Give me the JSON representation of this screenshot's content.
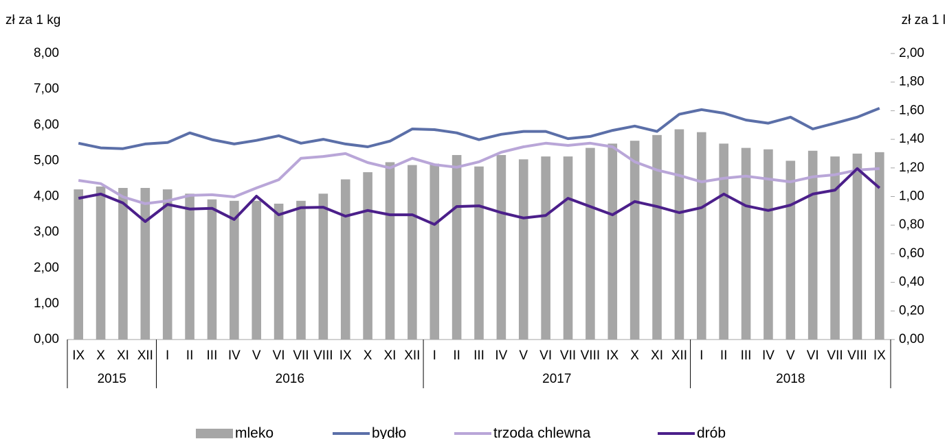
{
  "chart_data": {
    "type": "bar",
    "y_label": "zł za 1 kg",
    "y2_label": "zł za 1 l",
    "categories": [
      "IX",
      "X",
      "XI",
      "XII",
      "I",
      "II",
      "III",
      "IV",
      "V",
      "VI",
      "VII",
      "VIII",
      "IX",
      "X",
      "XI",
      "XII",
      "I",
      "II",
      "III",
      "IV",
      "V",
      "VI",
      "VII",
      "VIII",
      "IX",
      "X",
      "XI",
      "XII",
      "I",
      "II",
      "III",
      "IV",
      "V",
      "VI",
      "VII",
      "VIII",
      "IX"
    ],
    "years": [
      "2015",
      "2016",
      "2017",
      "2018"
    ],
    "ylim": [
      0,
      8
    ],
    "yticks": [
      {
        "value": 0,
        "label": "0,00"
      },
      {
        "value": 1,
        "label": "1,00"
      },
      {
        "value": 2,
        "label": "2,00"
      },
      {
        "value": 3,
        "label": "3,00"
      },
      {
        "value": 4,
        "label": "4,00"
      },
      {
        "value": 5,
        "label": "5,00"
      },
      {
        "value": 6,
        "label": "6,00"
      },
      {
        "value": 7,
        "label": "7,00"
      },
      {
        "value": 8,
        "label": "8,00"
      }
    ],
    "y2lim": [
      0,
      2
    ],
    "y2ticks": [
      {
        "value": 0,
        "label": "0,00"
      },
      {
        "value": 0.2,
        "label": "0,20"
      },
      {
        "value": 0.4,
        "label": "0,40"
      },
      {
        "value": 0.6,
        "label": "0,60"
      },
      {
        "value": 0.8,
        "label": "0,80"
      },
      {
        "value": 1,
        "label": "1,00"
      },
      {
        "value": 1.2,
        "label": "1,20"
      },
      {
        "value": 1.4,
        "label": "1,40"
      },
      {
        "value": 1.6,
        "label": "1,60"
      },
      {
        "value": 1.8,
        "label": "1,80"
      },
      {
        "value": 2,
        "label": "2,00"
      }
    ],
    "grid": false,
    "legend": "bottom",
    "series": [
      {
        "name": "mleko",
        "type": "bar",
        "axis": "y2",
        "color": "#a6a6a6",
        "values": [
          1.05,
          1.07,
          1.06,
          1.06,
          1.05,
          1.02,
          0.98,
          0.97,
          0.97,
          0.95,
          0.97,
          1.02,
          1.12,
          1.17,
          1.24,
          1.22,
          1.23,
          1.29,
          1.21,
          1.29,
          1.26,
          1.28,
          1.28,
          1.34,
          1.37,
          1.39,
          1.43,
          1.47,
          1.45,
          1.37,
          1.34,
          1.33,
          1.25,
          1.32,
          1.28,
          1.3,
          1.31
        ]
      },
      {
        "name": "bydło",
        "type": "line",
        "color": "#5b6fa8",
        "values": [
          5.49,
          5.36,
          5.34,
          5.47,
          5.51,
          5.78,
          5.59,
          5.47,
          5.57,
          5.7,
          5.49,
          5.6,
          5.47,
          5.39,
          5.55,
          5.89,
          5.87,
          5.78,
          5.59,
          5.74,
          5.82,
          5.82,
          5.62,
          5.68,
          5.85,
          5.97,
          5.82,
          6.3,
          6.43,
          6.33,
          6.14,
          6.05,
          6.22,
          5.89,
          6.05,
          6.22,
          6.47
        ]
      },
      {
        "name": "trzoda chlewna",
        "type": "line",
        "color": "#b9a6d8",
        "values": [
          4.45,
          4.36,
          3.99,
          3.8,
          3.88,
          4.03,
          4.05,
          3.99,
          4.24,
          4.47,
          5.07,
          5.12,
          5.2,
          4.95,
          4.8,
          5.07,
          4.89,
          4.82,
          4.97,
          5.24,
          5.39,
          5.49,
          5.43,
          5.49,
          5.39,
          4.97,
          4.74,
          4.59,
          4.41,
          4.51,
          4.57,
          4.49,
          4.41,
          4.55,
          4.61,
          4.74,
          4.78
        ]
      },
      {
        "name": "drób",
        "type": "line",
        "color": "#4b1f8a",
        "values": [
          3.95,
          4.07,
          3.82,
          3.3,
          3.78,
          3.65,
          3.67,
          3.36,
          4.01,
          3.49,
          3.69,
          3.7,
          3.45,
          3.61,
          3.49,
          3.49,
          3.22,
          3.72,
          3.74,
          3.55,
          3.4,
          3.47,
          3.95,
          3.72,
          3.49,
          3.86,
          3.72,
          3.55,
          3.69,
          4.07,
          3.74,
          3.61,
          3.76,
          4.07,
          4.18,
          4.78,
          4.24
        ]
      }
    ]
  }
}
